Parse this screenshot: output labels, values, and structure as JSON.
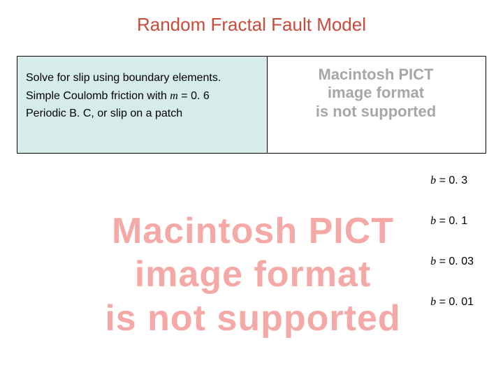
{
  "title": "Random Fractal Fault Model",
  "box": {
    "line1": "Solve for slip using boundary elements.",
    "line2_prefix": "Simple Coulomb friction with ",
    "line2_mu": "m",
    "line2_suffix": " = 0. 6",
    "line3": "Periodic B. C, or slip on a patch"
  },
  "pict_small": {
    "l1": "Macintosh PICT",
    "l2": "image format",
    "l3": "is not supported"
  },
  "pict_big": {
    "l1": "Macintosh PICT",
    "l2": "image format",
    "l3": "is not supported"
  },
  "betas": {
    "b1_sym": "b",
    "b1_val": " = 0. 3",
    "b2_sym": "b",
    "b2_val": " = 0. 1",
    "b3_sym": "b",
    "b3_val": " = 0. 03",
    "b4_sym": "b",
    "b4_val": " = 0. 01"
  },
  "colors": {
    "title": "#c74a3a",
    "box_bg": "#d6ecea",
    "pict_small": "#a7a7a7",
    "pict_big": "#f5a9a7"
  }
}
